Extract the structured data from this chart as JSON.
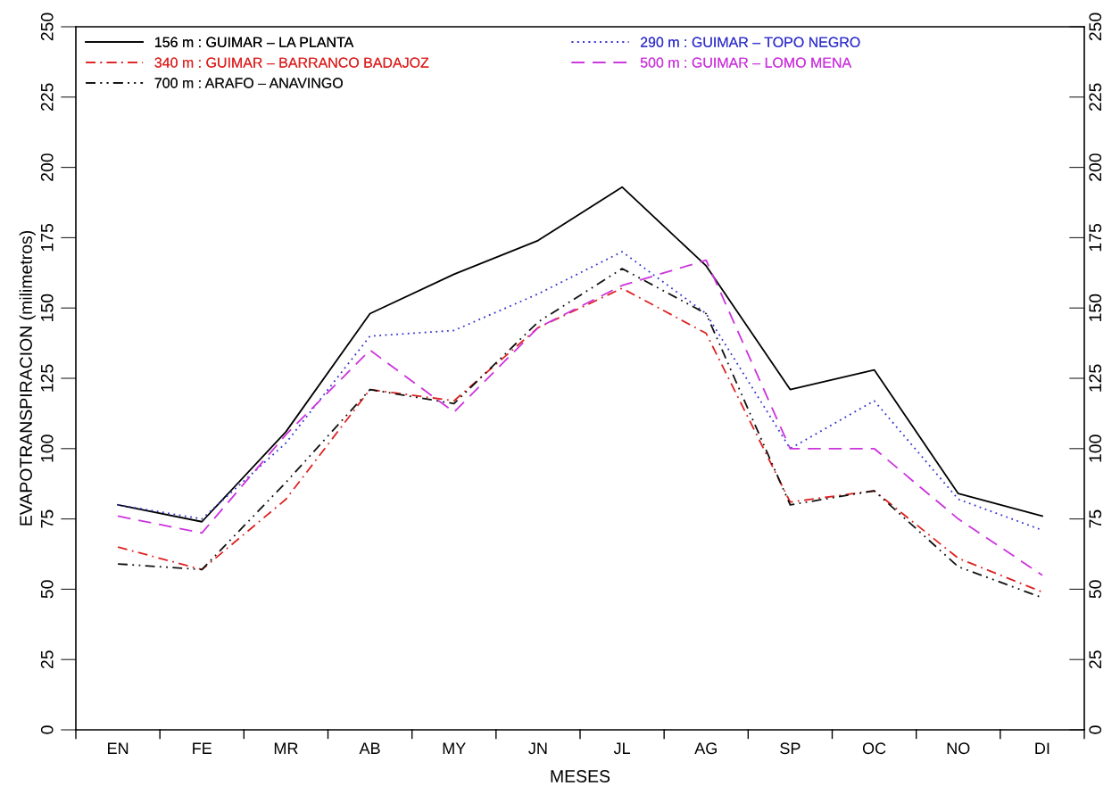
{
  "chart_data": {
    "type": "line",
    "xlabel": "MESES",
    "ylabel": "EVAPOTRANSPIRACION (milimetros)",
    "categories": [
      "EN",
      "FE",
      "MR",
      "AB",
      "MY",
      "JN",
      "JL",
      "AG",
      "SP",
      "OC",
      "NO",
      "DI"
    ],
    "series": [
      {
        "name": "156 m : GUIMAR – LA PLANTA",
        "color": "#000000",
        "line_style": "solid",
        "values": [
          80,
          74,
          106,
          148,
          162,
          174,
          193,
          165,
          121,
          128,
          84,
          76
        ]
      },
      {
        "name": "290 m : GUIMAR – TOPO NEGRO",
        "color": "#3333cc",
        "line_style": "dotted",
        "values": [
          80,
          75,
          102,
          140,
          142,
          155,
          170,
          148,
          100,
          117,
          82,
          71
        ]
      },
      {
        "name": "340 m : GUIMAR – BARRANCO BADAJOZ",
        "color": "#dd2222",
        "line_style": "dashdot",
        "values": [
          65,
          57,
          82,
          121,
          117,
          143,
          157,
          141,
          81,
          85,
          61,
          49
        ]
      },
      {
        "name": "500 m : GUIMAR – LOMO MENA",
        "color": "#cc33dd",
        "line_style": "dashed",
        "values": [
          76,
          70,
          105,
          135,
          113,
          143,
          158,
          167,
          100,
          100,
          75,
          55
        ]
      },
      {
        "name": "700 m : ARAFO – ANAVINGO",
        "color": "#111111",
        "line_style": "dashdotdot",
        "values": [
          59,
          57,
          88,
          121,
          116,
          145,
          164,
          148,
          80,
          85,
          58,
          47
        ]
      }
    ],
    "ylim": [
      0,
      250
    ],
    "yticks": [
      0,
      25,
      50,
      75,
      100,
      125,
      150,
      175,
      200,
      225,
      250
    ],
    "y2lim": [
      0,
      250
    ],
    "y2ticks": [
      0,
      25,
      50,
      75,
      100,
      125,
      150,
      175,
      200,
      225,
      250
    ],
    "grid": false,
    "legend": "top left",
    "marker": "none"
  }
}
